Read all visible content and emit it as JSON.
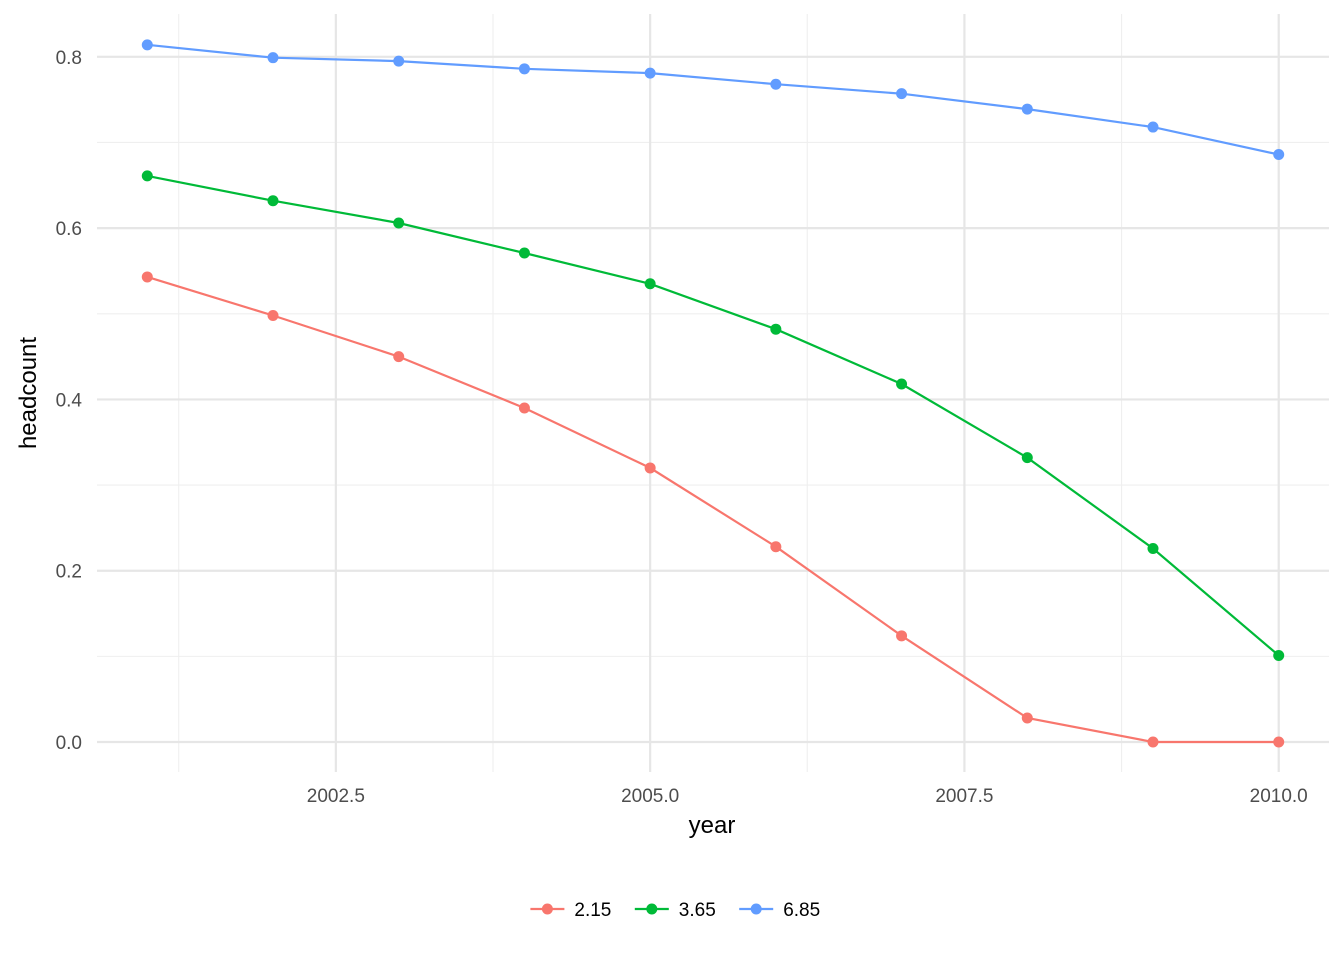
{
  "chart_data": {
    "type": "line",
    "xlabel": "year",
    "ylabel": "headcount",
    "xlim": [
      2000.6,
      2010.4
    ],
    "ylim": [
      -0.035,
      0.85
    ],
    "x_ticks": [
      2002.5,
      2005.0,
      2007.5,
      2010.0
    ],
    "x_tick_labels": [
      "2002.5",
      "2005.0",
      "2007.5",
      "2010.0"
    ],
    "y_ticks": [
      0.0,
      0.2,
      0.4,
      0.6,
      0.8
    ],
    "y_tick_labels": [
      "0.0",
      "0.2",
      "0.4",
      "0.6",
      "0.8"
    ],
    "grid": true,
    "legend_position": "bottom",
    "x": [
      2001,
      2002,
      2003,
      2004,
      2005,
      2006,
      2007,
      2008,
      2009,
      2010
    ],
    "series": [
      {
        "name": "2.15",
        "color": "#F8766D",
        "values": [
          0.543,
          0.498,
          0.45,
          0.39,
          0.32,
          0.228,
          0.124,
          0.028,
          0.0,
          0.0
        ]
      },
      {
        "name": "3.65",
        "color": "#00BA38",
        "values": [
          0.661,
          0.632,
          0.606,
          0.571,
          0.535,
          0.482,
          0.418,
          0.332,
          0.226,
          0.101
        ]
      },
      {
        "name": "6.85",
        "color": "#619CFF",
        "values": [
          0.814,
          0.799,
          0.795,
          0.786,
          0.781,
          0.768,
          0.757,
          0.739,
          0.718,
          0.686
        ]
      }
    ]
  }
}
